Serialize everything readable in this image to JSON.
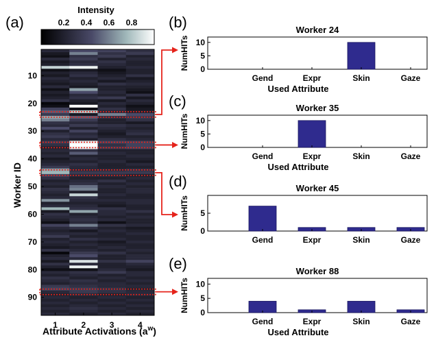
{
  "colors": {
    "bar_fill": "#2f2b8e",
    "bar_stroke": "#1a1760",
    "highlight": "#e5231b",
    "cmap_low": "#000000",
    "cmap_mid": "#5a5a78",
    "cmap_high": "#ffffff"
  },
  "heatmap": {
    "panel_letter": "(a)",
    "colorbar_title": "Intensity",
    "colorbar_ticks": [
      "0.2",
      "0.4",
      "0.6",
      "0.8"
    ],
    "colorbar_tick_values": [
      0.2,
      0.4,
      0.6,
      0.8
    ],
    "ylabel": "Worker ID",
    "xlabel_main": "Attribute Activations (a",
    "xlabel_sup": "w",
    "xlabel_end": ")",
    "xticks": [
      "1",
      "2",
      "3",
      "4"
    ],
    "yticks": [
      "10",
      "20",
      "30",
      "40",
      "50",
      "60",
      "70",
      "80",
      "90"
    ],
    "ytick_values": [
      10,
      20,
      30,
      40,
      50,
      60,
      70,
      80,
      90
    ],
    "rows": 96,
    "highlighted_workers": [
      24,
      35,
      45,
      88
    ]
  },
  "chart_data": [
    {
      "type": "heatmap",
      "panel": "(a)",
      "xlabel": "Attribute Activations (aw)",
      "ylabel": "Worker ID",
      "x": [
        "1",
        "2",
        "3",
        "4"
      ],
      "y_range": [
        1,
        96
      ],
      "colorbar": {
        "label": "Intensity",
        "range": [
          0,
          1
        ]
      },
      "values": [
        [
          0.25,
          0.45,
          0.4,
          0.3
        ],
        [
          0.15,
          0.6,
          0.3,
          0.35
        ],
        [
          0.1,
          0.3,
          0.35,
          0.2
        ],
        [
          0.25,
          0.35,
          0.2,
          0.25
        ],
        [
          0.15,
          0.25,
          0.3,
          0.2
        ],
        [
          0.2,
          0.3,
          0.25,
          0.2
        ],
        [
          0.85,
          0.95,
          0.2,
          0.25
        ],
        [
          0.1,
          0.15,
          0.1,
          0.2
        ],
        [
          0.2,
          0.25,
          0.15,
          0.2
        ],
        [
          0.15,
          0.3,
          0.2,
          0.3
        ],
        [
          0.25,
          0.2,
          0.25,
          0.15
        ],
        [
          0.2,
          0.25,
          0.15,
          0.2
        ],
        [
          0.15,
          0.2,
          0.3,
          0.25
        ],
        [
          0.25,
          0.15,
          0.2,
          0.2
        ],
        [
          0.1,
          0.7,
          0.2,
          0.15
        ],
        [
          0.2,
          0.45,
          0.25,
          0.1
        ],
        [
          0.15,
          0.25,
          0.2,
          0.3
        ],
        [
          0.2,
          0.3,
          0.35,
          0.15
        ],
        [
          0.3,
          0.2,
          0.15,
          0.25
        ],
        [
          0.05,
          0.15,
          0.25,
          0.2
        ],
        [
          0.1,
          1.0,
          0.2,
          0.1
        ],
        [
          0.4,
          0.1,
          0.3,
          0.15
        ],
        [
          0.5,
          0.8,
          0.25,
          0.2
        ],
        [
          0.35,
          0.15,
          0.6,
          0.45
        ],
        [
          0.7,
          0.5,
          0.3,
          0.35
        ],
        [
          0.6,
          0.35,
          0.2,
          0.3
        ],
        [
          0.3,
          0.25,
          0.2,
          0.15
        ],
        [
          0.25,
          0.35,
          0.3,
          0.25
        ],
        [
          0.45,
          0.2,
          0.25,
          0.2
        ],
        [
          0.2,
          0.4,
          0.2,
          0.25
        ],
        [
          0.3,
          0.25,
          0.15,
          0.3
        ],
        [
          0.35,
          0.3,
          0.2,
          0.2
        ],
        [
          0.25,
          0.2,
          0.3,
          0.25
        ],
        [
          0.35,
          0.95,
          0.4,
          0.4
        ],
        [
          0.3,
          1.0,
          0.3,
          0.4
        ],
        [
          0.2,
          0.95,
          0.35,
          0.4
        ],
        [
          0.25,
          0.3,
          0.2,
          0.2
        ],
        [
          0.2,
          0.5,
          0.25,
          0.2
        ],
        [
          0.25,
          0.2,
          0.2,
          0.25
        ],
        [
          0.15,
          0.25,
          0.2,
          0.2
        ],
        [
          0.2,
          0.2,
          0.25,
          0.15
        ],
        [
          0.25,
          0.3,
          0.2,
          0.25
        ],
        [
          0.35,
          0.25,
          0.2,
          0.2
        ],
        [
          0.7,
          0.25,
          0.25,
          0.3
        ],
        [
          0.75,
          0.35,
          0.35,
          0.35
        ],
        [
          0.4,
          0.25,
          0.25,
          0.2
        ],
        [
          0.3,
          0.2,
          0.2,
          0.25
        ],
        [
          0.2,
          0.25,
          0.3,
          0.2
        ],
        [
          0.25,
          0.3,
          0.2,
          0.25
        ],
        [
          0.2,
          0.55,
          0.25,
          0.2
        ],
        [
          0.3,
          0.6,
          0.2,
          0.25
        ],
        [
          0.25,
          0.2,
          0.2,
          0.25
        ],
        [
          0.2,
          0.85,
          0.25,
          0.2
        ],
        [
          0.25,
          0.3,
          0.2,
          0.2
        ],
        [
          0.65,
          0.25,
          0.25,
          0.25
        ],
        [
          0.2,
          0.2,
          0.2,
          0.25
        ],
        [
          0.25,
          0.25,
          0.15,
          0.2
        ],
        [
          0.75,
          0.3,
          0.3,
          0.2
        ],
        [
          0.15,
          0.7,
          0.25,
          0.3
        ],
        [
          0.3,
          0.2,
          0.25,
          0.2
        ],
        [
          0.25,
          0.25,
          0.2,
          0.25
        ],
        [
          0.2,
          0.3,
          0.25,
          0.2
        ],
        [
          0.1,
          0.25,
          0.1,
          0.2
        ],
        [
          0.4,
          0.6,
          0.3,
          0.25
        ],
        [
          0.25,
          0.3,
          0.2,
          0.15
        ],
        [
          0.2,
          0.15,
          0.25,
          0.2
        ],
        [
          0.25,
          0.25,
          0.2,
          0.25
        ],
        [
          0.35,
          0.2,
          0.2,
          0.2
        ],
        [
          0.2,
          0.3,
          0.25,
          0.2
        ],
        [
          0.25,
          0.2,
          0.15,
          0.25
        ],
        [
          0.2,
          0.25,
          0.2,
          0.2
        ],
        [
          0.15,
          0.2,
          0.25,
          0.2
        ],
        [
          0.3,
          0.25,
          0.2,
          0.25
        ],
        [
          0.05,
          0.35,
          0.3,
          0.2
        ],
        [
          0.2,
          0.45,
          0.2,
          0.25
        ],
        [
          0.25,
          0.25,
          0.2,
          0.25
        ],
        [
          0.15,
          0.9,
          0.3,
          0.4
        ],
        [
          0.3,
          0.25,
          0.2,
          0.25
        ],
        [
          0.2,
          0.95,
          0.2,
          0.2
        ],
        [
          0.1,
          0.1,
          0.25,
          0.15
        ],
        [
          0.25,
          0.3,
          0.35,
          0.25
        ],
        [
          0.2,
          0.25,
          0.2,
          0.25
        ],
        [
          0.3,
          0.2,
          0.25,
          0.2
        ],
        [
          0.25,
          0.3,
          0.2,
          0.25
        ],
        [
          0.2,
          0.25,
          0.25,
          0.2
        ],
        [
          0.35,
          0.3,
          0.25,
          0.25
        ],
        [
          0.4,
          0.35,
          0.3,
          0.2
        ],
        [
          0.25,
          0.35,
          0.3,
          0.25
        ],
        [
          0.2,
          0.25,
          0.2,
          0.25
        ],
        [
          0.25,
          0.2,
          0.25,
          0.2
        ],
        [
          0.2,
          0.25,
          0.2,
          0.25
        ],
        [
          0.25,
          0.2,
          0.25,
          0.2
        ],
        [
          0.2,
          0.25,
          0.2,
          0.25
        ],
        [
          0.25,
          0.3,
          0.25,
          0.2
        ],
        [
          0.2,
          0.25,
          0.2,
          0.25
        ],
        [
          0.25,
          0.2,
          0.25,
          0.2
        ]
      ]
    },
    {
      "type": "bar",
      "panel": "(b)",
      "title": "Worker 24",
      "categories": [
        "Gend",
        "Expr",
        "Skin",
        "Gaze"
      ],
      "values": [
        0,
        0,
        10,
        0
      ],
      "xlabel": "Used Attribute",
      "ylabel": "NumHITs",
      "ylim": [
        0,
        12
      ],
      "yticks": [
        "0",
        "5",
        "10"
      ]
    },
    {
      "type": "bar",
      "panel": "(c)",
      "title": "Worker 35",
      "categories": [
        "Gend",
        "Expr",
        "Skin",
        "Gaze"
      ],
      "values": [
        0,
        10,
        0,
        0
      ],
      "xlabel": "Used Attribute",
      "ylabel": "NumHITs",
      "ylim": [
        0,
        12
      ],
      "yticks": [
        "0",
        "5",
        "10"
      ]
    },
    {
      "type": "bar",
      "panel": "(d)",
      "title": "Worker 45",
      "categories": [
        "Gend",
        "Expr",
        "Skin",
        "Gaze"
      ],
      "values": [
        7,
        1,
        1,
        1
      ],
      "xlabel": "",
      "ylabel": "NumHITs",
      "ylim": [
        0,
        10
      ],
      "yticks": [
        "0",
        "5"
      ]
    },
    {
      "type": "bar",
      "panel": "(e)",
      "title": "Worker 88",
      "categories": [
        "Gend",
        "Expr",
        "Skin",
        "Gaze"
      ],
      "values": [
        4,
        1,
        4,
        1
      ],
      "xlabel": "Used Attribute",
      "ylabel": "NumHITs",
      "ylim": [
        0,
        12
      ],
      "yticks": [
        "0",
        "5",
        "10"
      ]
    }
  ]
}
